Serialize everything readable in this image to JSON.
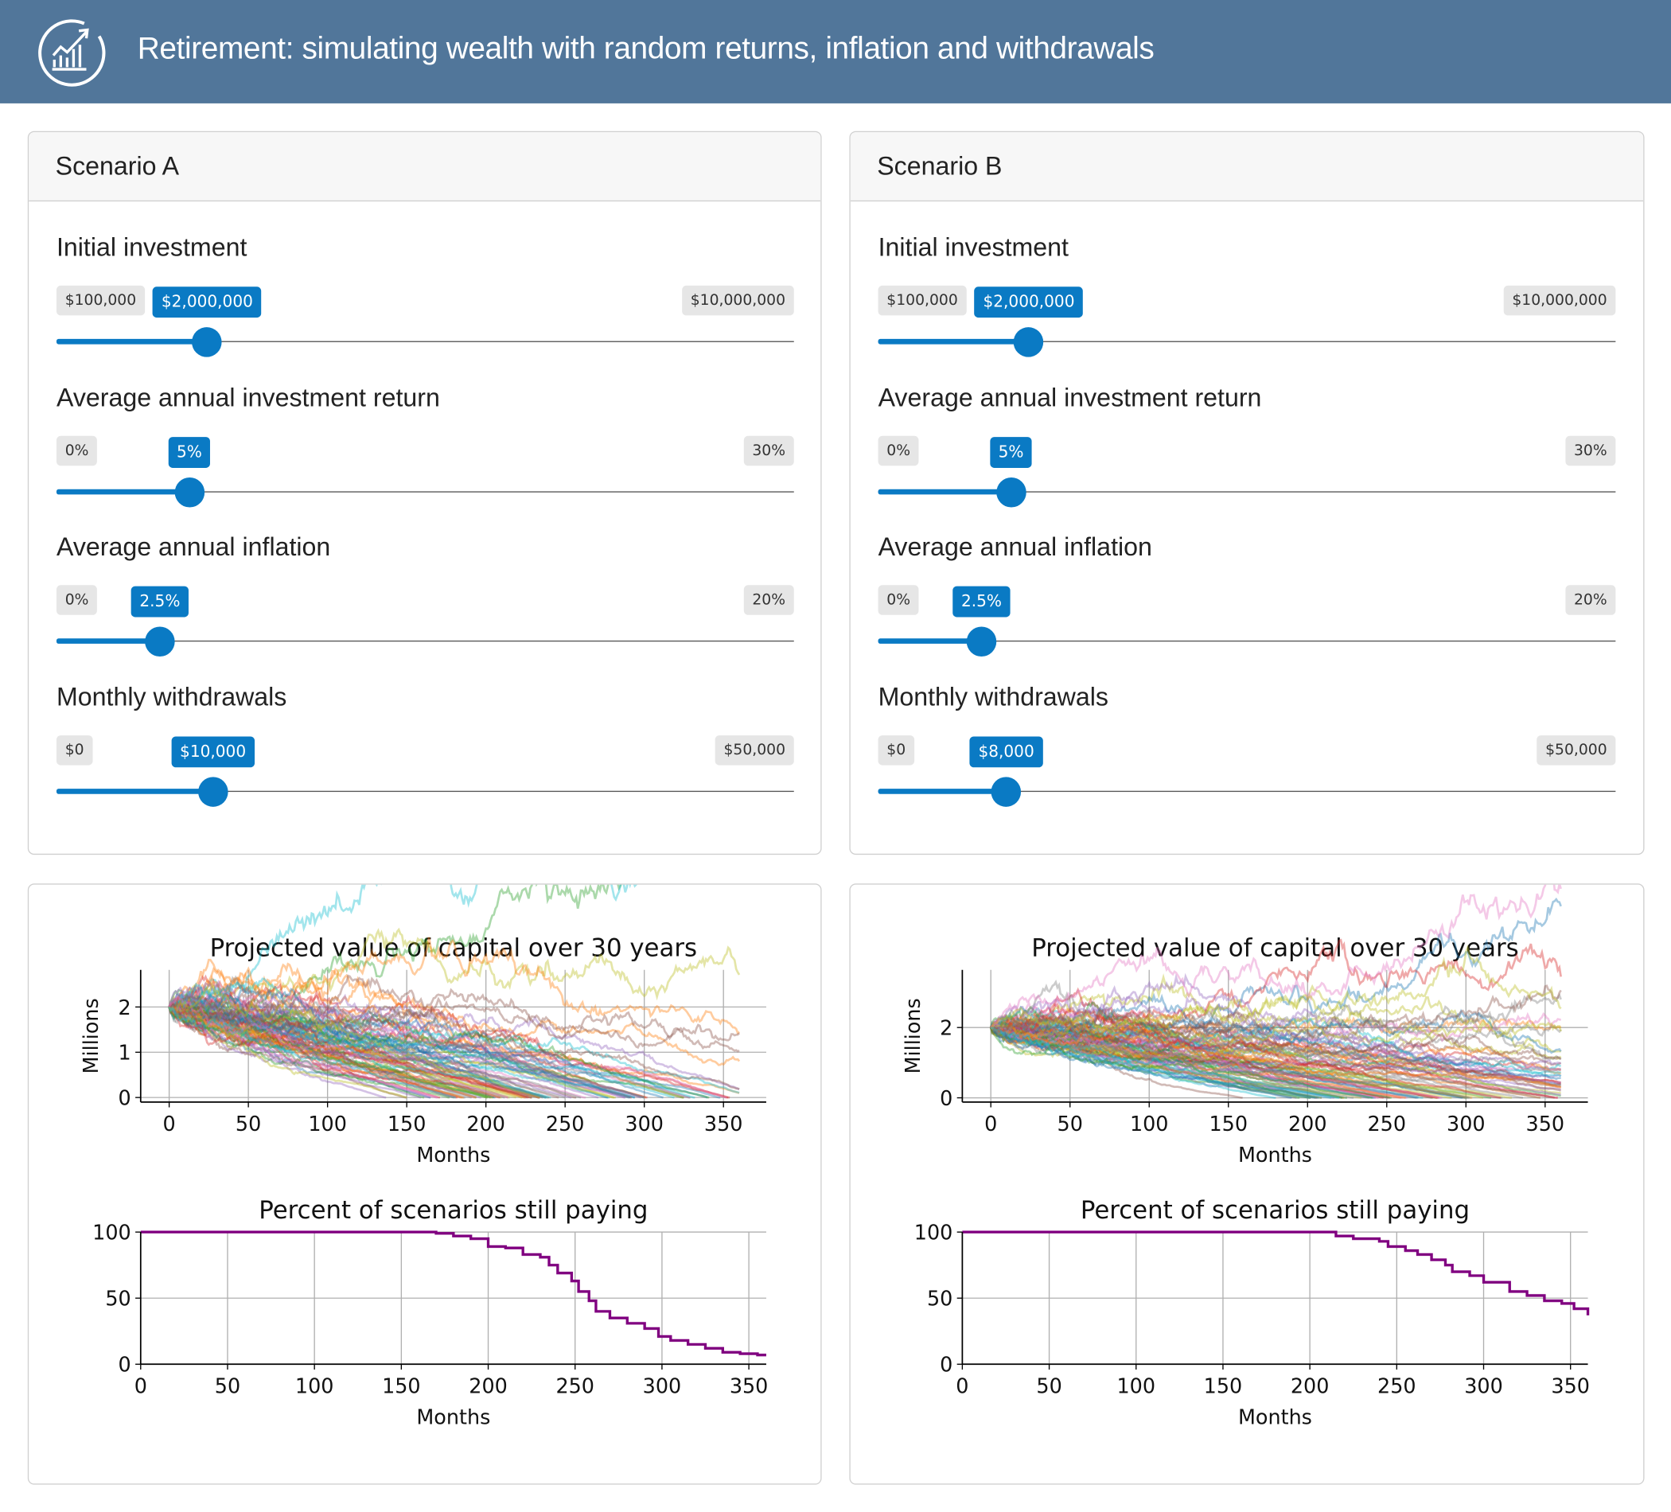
{
  "header": {
    "title": "Retirement: simulating wealth with random returns, inflation and withdrawals",
    "icon": "chart-growth-icon",
    "background": "#51769a"
  },
  "accent": "#0a7ac4",
  "scenarios": [
    {
      "title": "Scenario A",
      "sliders": [
        {
          "label": "Initial investment",
          "min_label": "$100,000",
          "max_label": "$10,000,000",
          "value_label": "$2,000,000",
          "min": 100000,
          "max": 10000000,
          "value": 2000000
        },
        {
          "label": "Average annual investment return",
          "min_label": "0%",
          "max_label": "30%",
          "value_label": "5%",
          "min": 0,
          "max": 30,
          "value": 5
        },
        {
          "label": "Average annual inflation",
          "min_label": "0%",
          "max_label": "20%",
          "value_label": "2.5%",
          "min": 0,
          "max": 20,
          "value": 2.5
        },
        {
          "label": "Monthly withdrawals",
          "min_label": "$0",
          "max_label": "$50,000",
          "value_label": "$10,000",
          "min": 0,
          "max": 50000,
          "value": 10000
        }
      ]
    },
    {
      "title": "Scenario B",
      "sliders": [
        {
          "label": "Initial investment",
          "min_label": "$100,000",
          "max_label": "$10,000,000",
          "value_label": "$2,000,000",
          "min": 100000,
          "max": 10000000,
          "value": 2000000
        },
        {
          "label": "Average annual investment return",
          "min_label": "0%",
          "max_label": "30%",
          "value_label": "5%",
          "min": 0,
          "max": 30,
          "value": 5
        },
        {
          "label": "Average annual inflation",
          "min_label": "0%",
          "max_label": "20%",
          "value_label": "2.5%",
          "min": 0,
          "max": 20,
          "value": 2.5
        },
        {
          "label": "Monthly withdrawals",
          "min_label": "$0",
          "max_label": "$50,000",
          "value_label": "$8,000",
          "min": 0,
          "max": 50000,
          "value": 8000
        }
      ]
    }
  ],
  "chart_data": [
    {
      "scenario": "Scenario A",
      "type": "line",
      "title": "Projected value of capital over 30 years",
      "xlabel": "Months",
      "ylabel": "Millions",
      "xlim": [
        -18,
        377
      ],
      "ylim": [
        -0.1,
        2.82
      ],
      "xticks": [
        0,
        50,
        100,
        150,
        200,
        250,
        300,
        350
      ],
      "yticks": [
        0,
        1,
        2
      ],
      "grid": true,
      "series_description": "many simulated paths starting at 2, mostly depleting between months 150 and 360; a few ending near 1"
    },
    {
      "scenario": "Scenario A",
      "type": "line",
      "title": "Percent of scenarios still paying",
      "xlabel": "Months",
      "ylabel": "",
      "xlim": [
        0,
        360
      ],
      "ylim": [
        0,
        100
      ],
      "xticks": [
        0,
        50,
        100,
        150,
        200,
        250,
        300,
        350
      ],
      "yticks": [
        0,
        50,
        100
      ],
      "grid": true,
      "color": "#800080",
      "x": [
        0,
        155,
        170,
        180,
        190,
        200,
        210,
        220,
        230,
        235,
        240,
        248,
        252,
        258,
        262,
        270,
        280,
        290,
        298,
        305,
        315,
        325,
        335,
        345,
        355,
        360
      ],
      "y": [
        100,
        100,
        99,
        97,
        95,
        89,
        88,
        83,
        81,
        75,
        69,
        63,
        55,
        48,
        40,
        35,
        31,
        27,
        21,
        18,
        15,
        12,
        9,
        8,
        7,
        7
      ]
    },
    {
      "scenario": "Scenario B",
      "type": "line",
      "title": "Projected value of capital over 30 years",
      "xlabel": "Months",
      "ylabel": "Millions",
      "xlim": [
        -18,
        377
      ],
      "ylim": [
        -0.12,
        3.64
      ],
      "xticks": [
        0,
        50,
        100,
        150,
        200,
        250,
        300,
        350
      ],
      "yticks": [
        0,
        2
      ],
      "grid": true,
      "series_description": "many simulated paths starting at 2; roughly a third still above 0 at month 360, a few near 2-2.5"
    },
    {
      "scenario": "Scenario B",
      "type": "line",
      "title": "Percent of scenarios still paying",
      "xlabel": "Months",
      "ylabel": "",
      "xlim": [
        0,
        360
      ],
      "ylim": [
        0,
        100
      ],
      "xticks": [
        0,
        50,
        100,
        150,
        200,
        250,
        300,
        350
      ],
      "yticks": [
        0,
        50,
        100
      ],
      "grid": true,
      "color": "#800080",
      "x": [
        0,
        210,
        215,
        225,
        240,
        245,
        255,
        262,
        270,
        278,
        282,
        292,
        300,
        307,
        315,
        325,
        335,
        345,
        352,
        360
      ],
      "y": [
        100,
        100,
        97,
        95,
        93,
        89,
        86,
        83,
        79,
        75,
        70,
        67,
        62,
        62,
        55,
        52,
        48,
        46,
        42,
        37
      ]
    }
  ]
}
